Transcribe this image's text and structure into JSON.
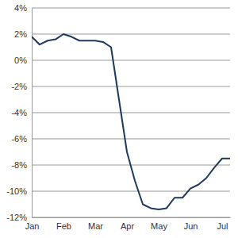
{
  "chart_data": {
    "type": "line",
    "categories": [
      "Jan",
      null,
      null,
      null,
      "Feb",
      null,
      null,
      null,
      "Mar",
      null,
      null,
      null,
      "Apr",
      null,
      null,
      null,
      "May",
      null,
      null,
      null,
      "Jun",
      null,
      null,
      null,
      "Jul",
      null
    ],
    "values": [
      1.8,
      1.2,
      1.5,
      1.6,
      2.0,
      1.8,
      1.5,
      1.5,
      1.5,
      1.4,
      1.0,
      -3.0,
      -7.0,
      -9.2,
      -11.0,
      -11.3,
      -11.4,
      -11.3,
      -10.5,
      -10.5,
      -9.8,
      -9.5,
      -9.0,
      -8.2,
      -7.5,
      -7.5
    ],
    "color": "#1d3a5c",
    "ylim": [
      -12,
      4
    ],
    "yticks": [
      {
        "value": -12,
        "label": "-12%"
      },
      {
        "value": -10,
        "label": "-10%"
      },
      {
        "value": -8,
        "label": "-8%"
      },
      {
        "value": -6,
        "label": "-6%"
      },
      {
        "value": -4,
        "label": "-4%"
      },
      {
        "value": -2,
        "label": "-2%"
      },
      {
        "value": 0,
        "label": "0%"
      },
      {
        "value": 2,
        "label": "2%"
      },
      {
        "value": 4,
        "label": "4%"
      }
    ],
    "grid": true
  }
}
